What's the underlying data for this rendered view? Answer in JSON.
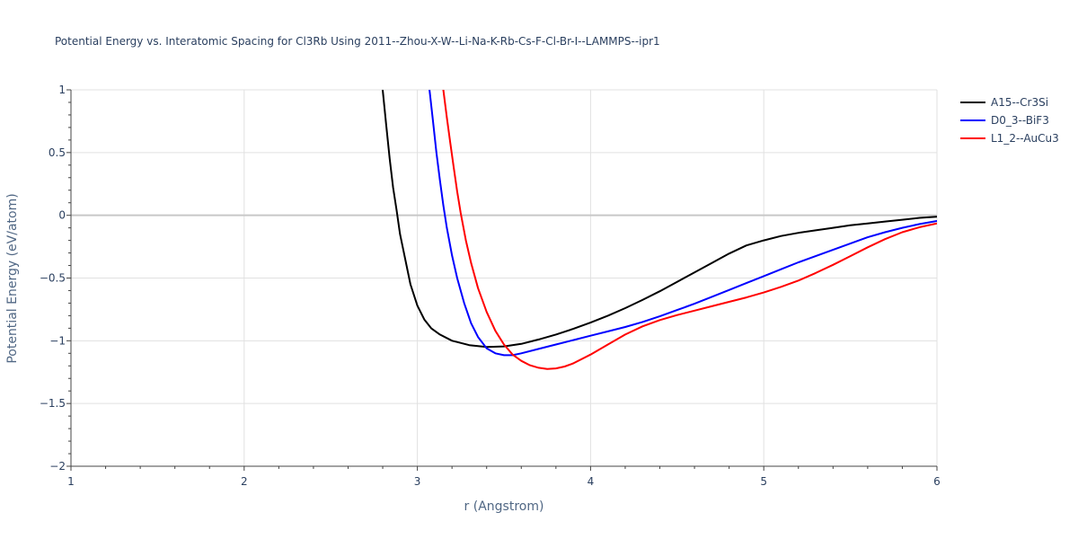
{
  "chart_data": {
    "type": "line",
    "title": "Potential Energy vs. Interatomic Spacing for Cl3Rb Using 2011--Zhou-X-W--Li-Na-K-Rb-Cs-F-Cl-Br-I--LAMMPS--ipr1",
    "xlabel": "r (Angstrom)",
    "ylabel": "Potential Energy (eV/atom)",
    "xlim": [
      1,
      6
    ],
    "ylim": [
      -2,
      1
    ],
    "x_ticks": [
      1,
      2,
      3,
      4,
      5,
      6
    ],
    "x_tick_labels": [
      "1",
      "2",
      "3",
      "4",
      "5",
      "6"
    ],
    "y_ticks": [
      1,
      0.5,
      0,
      -0.5,
      -1,
      -1.5,
      -2
    ],
    "y_tick_labels": [
      "1",
      "0.5",
      "0",
      "−0.5",
      "−1",
      "−1.5",
      "−2"
    ],
    "grid": true,
    "legend_position": "top-right",
    "series": [
      {
        "name": "A15--Cr3Si",
        "color": "#000000",
        "points": [
          [
            2.8,
            1.0
          ],
          [
            2.82,
            0.72
          ],
          [
            2.84,
            0.45
          ],
          [
            2.86,
            0.22
          ],
          [
            2.88,
            0.04
          ],
          [
            2.9,
            -0.15
          ],
          [
            2.93,
            -0.35
          ],
          [
            2.96,
            -0.55
          ],
          [
            3.0,
            -0.72
          ],
          [
            3.04,
            -0.83
          ],
          [
            3.08,
            -0.9
          ],
          [
            3.13,
            -0.95
          ],
          [
            3.2,
            -1.0
          ],
          [
            3.3,
            -1.035
          ],
          [
            3.4,
            -1.05
          ],
          [
            3.5,
            -1.045
          ],
          [
            3.6,
            -1.025
          ],
          [
            3.7,
            -0.99
          ],
          [
            3.8,
            -0.95
          ],
          [
            3.9,
            -0.905
          ],
          [
            4.0,
            -0.855
          ],
          [
            4.1,
            -0.8
          ],
          [
            4.2,
            -0.74
          ],
          [
            4.3,
            -0.675
          ],
          [
            4.4,
            -0.605
          ],
          [
            4.5,
            -0.53
          ],
          [
            4.6,
            -0.455
          ],
          [
            4.7,
            -0.38
          ],
          [
            4.8,
            -0.305
          ],
          [
            4.9,
            -0.24
          ],
          [
            5.0,
            -0.2
          ],
          [
            5.1,
            -0.165
          ],
          [
            5.2,
            -0.14
          ],
          [
            5.3,
            -0.12
          ],
          [
            5.4,
            -0.1
          ],
          [
            5.5,
            -0.08
          ],
          [
            5.6,
            -0.065
          ],
          [
            5.7,
            -0.05
          ],
          [
            5.8,
            -0.035
          ],
          [
            5.9,
            -0.02
          ],
          [
            6.0,
            -0.012
          ]
        ]
      },
      {
        "name": "D0_3--BiF3",
        "color": "#0000ff",
        "points": [
          [
            3.07,
            1.0
          ],
          [
            3.09,
            0.75
          ],
          [
            3.11,
            0.5
          ],
          [
            3.13,
            0.28
          ],
          [
            3.15,
            0.08
          ],
          [
            3.17,
            -0.1
          ],
          [
            3.2,
            -0.32
          ],
          [
            3.23,
            -0.5
          ],
          [
            3.27,
            -0.7
          ],
          [
            3.31,
            -0.86
          ],
          [
            3.35,
            -0.97
          ],
          [
            3.4,
            -1.06
          ],
          [
            3.45,
            -1.1
          ],
          [
            3.5,
            -1.115
          ],
          [
            3.55,
            -1.115
          ],
          [
            3.6,
            -1.1
          ],
          [
            3.7,
            -1.065
          ],
          [
            3.8,
            -1.03
          ],
          [
            3.9,
            -0.995
          ],
          [
            4.0,
            -0.96
          ],
          [
            4.1,
            -0.925
          ],
          [
            4.2,
            -0.89
          ],
          [
            4.3,
            -0.85
          ],
          [
            4.4,
            -0.805
          ],
          [
            4.5,
            -0.755
          ],
          [
            4.6,
            -0.705
          ],
          [
            4.7,
            -0.65
          ],
          [
            4.8,
            -0.595
          ],
          [
            4.9,
            -0.54
          ],
          [
            5.0,
            -0.485
          ],
          [
            5.1,
            -0.43
          ],
          [
            5.2,
            -0.375
          ],
          [
            5.3,
            -0.325
          ],
          [
            5.4,
            -0.275
          ],
          [
            5.5,
            -0.225
          ],
          [
            5.6,
            -0.175
          ],
          [
            5.7,
            -0.135
          ],
          [
            5.8,
            -0.1
          ],
          [
            5.9,
            -0.07
          ],
          [
            6.0,
            -0.045
          ]
        ]
      },
      {
        "name": "L1_2--AuCu3",
        "color": "#ff0000",
        "points": [
          [
            3.15,
            1.0
          ],
          [
            3.17,
            0.78
          ],
          [
            3.19,
            0.58
          ],
          [
            3.21,
            0.38
          ],
          [
            3.23,
            0.19
          ],
          [
            3.25,
            0.02
          ],
          [
            3.28,
            -0.2
          ],
          [
            3.31,
            -0.38
          ],
          [
            3.35,
            -0.58
          ],
          [
            3.4,
            -0.77
          ],
          [
            3.45,
            -0.92
          ],
          [
            3.5,
            -1.03
          ],
          [
            3.55,
            -1.11
          ],
          [
            3.6,
            -1.16
          ],
          [
            3.65,
            -1.195
          ],
          [
            3.7,
            -1.215
          ],
          [
            3.75,
            -1.225
          ],
          [
            3.8,
            -1.22
          ],
          [
            3.85,
            -1.205
          ],
          [
            3.9,
            -1.18
          ],
          [
            4.0,
            -1.11
          ],
          [
            4.1,
            -1.03
          ],
          [
            4.2,
            -0.95
          ],
          [
            4.3,
            -0.885
          ],
          [
            4.4,
            -0.835
          ],
          [
            4.5,
            -0.795
          ],
          [
            4.6,
            -0.76
          ],
          [
            4.7,
            -0.725
          ],
          [
            4.8,
            -0.69
          ],
          [
            4.9,
            -0.655
          ],
          [
            5.0,
            -0.615
          ],
          [
            5.1,
            -0.57
          ],
          [
            5.2,
            -0.52
          ],
          [
            5.3,
            -0.46
          ],
          [
            5.4,
            -0.395
          ],
          [
            5.5,
            -0.325
          ],
          [
            5.6,
            -0.255
          ],
          [
            5.7,
            -0.19
          ],
          [
            5.8,
            -0.135
          ],
          [
            5.9,
            -0.095
          ],
          [
            6.0,
            -0.065
          ]
        ]
      }
    ]
  }
}
